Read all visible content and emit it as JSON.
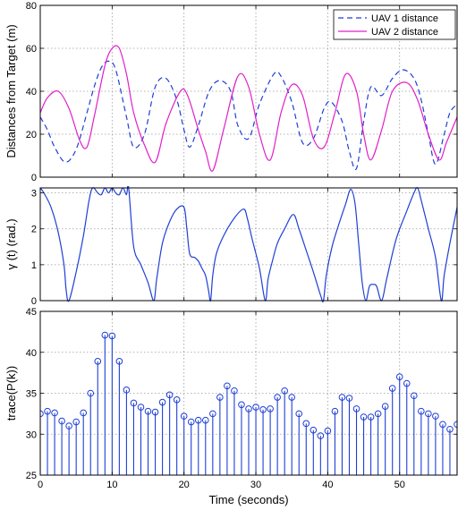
{
  "colors": {
    "blue": "#1f3fd6",
    "magenta": "#e020c8"
  },
  "x_axis": {
    "label": "Time (seconds)",
    "range": [
      0,
      58
    ],
    "ticks": [
      0,
      10,
      20,
      30,
      40,
      50
    ],
    "tick_labels": [
      "0",
      "10",
      "20",
      "30",
      "40",
      "50"
    ]
  },
  "chart_data": [
    {
      "type": "line",
      "ylabel": "Distances from Target (m)",
      "ylim": [
        0,
        80
      ],
      "yticks": [
        0,
        20,
        40,
        60,
        80
      ],
      "ytick_labels": [
        "0",
        "20",
        "40",
        "60",
        "80"
      ],
      "grid": true,
      "legend_position": "top-right",
      "series": [
        {
          "name": "UAV 1 distance",
          "style": "dashed",
          "color": "#1f3fd6",
          "x": [
            0,
            1,
            2,
            3.5,
            5,
            6.5,
            7.5,
            8.5,
            9.5,
            10.5,
            12,
            13,
            14.5,
            16,
            17.5,
            19,
            20,
            20.8,
            22,
            23.5,
            25,
            26.5,
            27.5,
            29,
            30.5,
            32.5,
            33.5,
            35,
            36.5,
            38,
            39.5,
            40.5,
            42,
            43,
            44,
            45,
            46,
            47.5,
            49,
            50.5,
            52,
            53,
            54,
            55,
            56.2,
            57,
            58
          ],
          "y": [
            28,
            22,
            14,
            7,
            13,
            30,
            42,
            51,
            54,
            50,
            28,
            14,
            20,
            42,
            46,
            36,
            22,
            14,
            24,
            40,
            45,
            40,
            24,
            18,
            34,
            48,
            47,
            35,
            16,
            18,
            32,
            35,
            26,
            12,
            4,
            26,
            42,
            38,
            46,
            50,
            46,
            36,
            20,
            6,
            20,
            30,
            34
          ]
        },
        {
          "name": "UAV 2 distance",
          "style": "solid",
          "color": "#e020c8",
          "x": [
            0,
            1,
            2.5,
            4,
            5.5,
            6.5,
            7.5,
            9,
            10,
            11,
            12,
            13,
            14.5,
            16,
            17.5,
            19.5,
            20.5,
            22,
            23,
            24,
            25.5,
            27.5,
            29,
            30.5,
            32,
            33.5,
            35,
            36.5,
            38,
            39.5,
            41,
            42.5,
            44,
            45,
            46,
            47.5,
            49,
            51,
            52.5,
            54,
            55.5,
            56.5,
            57.5,
            58
          ],
          "y": [
            30,
            37,
            40,
            32,
            17,
            14,
            28,
            52,
            60,
            60,
            48,
            30,
            15,
            7,
            25,
            40,
            38,
            22,
            12,
            3,
            22,
            47,
            42,
            20,
            8,
            30,
            43,
            38,
            18,
            14,
            30,
            48,
            40,
            20,
            8,
            22,
            40,
            44,
            36,
            20,
            8,
            16,
            24,
            28
          ]
        }
      ]
    },
    {
      "type": "line",
      "ylabel": "γ (t)  (rad.)",
      "ylim": [
        0,
        3.14
      ],
      "yticks": [
        0,
        1,
        2,
        3
      ],
      "ytick_labels": [
        "0",
        "1",
        "2",
        "3"
      ],
      "grid": true,
      "series": [
        {
          "style": "solid",
          "color": "#1f3fd6",
          "x": [
            0,
            0.5,
            1.5,
            2.5,
            3.3,
            3.6,
            4,
            5,
            6,
            6.8,
            7.3,
            8,
            8.5,
            9,
            9.5,
            10,
            10.5,
            11,
            11.5,
            12,
            12.3,
            13,
            14,
            15,
            15.8,
            16.2,
            17,
            18,
            19,
            20,
            20.4,
            20.8,
            21.5,
            22,
            22.5,
            23,
            23.4,
            23.7,
            24,
            24.5,
            25.5,
            27,
            28.3,
            28.8,
            29.5,
            30.5,
            31.3,
            31.7,
            32.3,
            33,
            34,
            35.2,
            36,
            37,
            38,
            39,
            39.4,
            39.8,
            40.6,
            41.5,
            42.5,
            43.2,
            43.8,
            44.3,
            44.8,
            45.3,
            45.8,
            46.3,
            46.8,
            47.5,
            48.2,
            49.5,
            51,
            52,
            52.5,
            53,
            54,
            55,
            55.8,
            56.2,
            57,
            58
          ],
          "y": [
            3.14,
            3.0,
            2.6,
            1.9,
            1.0,
            0.3,
            0.0,
            0.8,
            1.8,
            2.8,
            3.14,
            3.0,
            2.95,
            3.14,
            3.0,
            3.14,
            3.0,
            2.95,
            3.14,
            2.95,
            3.14,
            1.5,
            1.0,
            0.5,
            0.0,
            0.6,
            1.6,
            2.2,
            2.55,
            2.6,
            2.0,
            1.3,
            1.2,
            1.1,
            0.9,
            0.7,
            0.3,
            0.0,
            0.7,
            1.3,
            1.8,
            2.3,
            2.55,
            2.3,
            1.7,
            0.9,
            0.0,
            0.6,
            1.1,
            1.6,
            2.0,
            2.4,
            2.0,
            1.4,
            0.8,
            0.15,
            0.0,
            0.7,
            1.5,
            2.1,
            2.7,
            3.1,
            2.7,
            1.6,
            0.5,
            0.0,
            0.4,
            0.45,
            0.4,
            0.0,
            0.6,
            1.7,
            2.5,
            3.0,
            3.14,
            2.8,
            2.0,
            1.2,
            0.0,
            0.7,
            1.6,
            2.6
          ]
        }
      ]
    },
    {
      "type": "stem",
      "ylabel": "trace(P(k))",
      "ylim": [
        25,
        45
      ],
      "yticks": [
        25,
        30,
        35,
        40,
        45
      ],
      "ytick_labels": [
        "25",
        "30",
        "35",
        "40",
        "45"
      ],
      "grid": true,
      "series": [
        {
          "color": "#1f3fd6",
          "x": [
            0,
            1,
            2,
            3,
            4,
            5,
            6,
            7,
            8,
            9,
            10,
            11,
            12,
            13,
            14,
            15,
            16,
            17,
            18,
            19,
            20,
            21,
            22,
            23,
            24,
            25,
            26,
            27,
            28,
            29,
            30,
            31,
            32,
            33,
            34,
            35,
            36,
            37,
            38,
            39,
            40,
            41,
            42,
            43,
            44,
            45,
            46,
            47,
            48,
            49,
            50,
            51,
            52,
            53,
            54,
            55,
            56,
            57,
            58
          ],
          "y": [
            32.5,
            32.8,
            32.6,
            31.6,
            31.0,
            31.5,
            32.6,
            35.0,
            38.9,
            42.1,
            42.0,
            38.9,
            35.4,
            33.8,
            33.3,
            32.8,
            32.7,
            33.9,
            34.8,
            34.2,
            32.2,
            31.5,
            31.7,
            31.7,
            32.5,
            34.5,
            35.9,
            35.3,
            33.6,
            33.1,
            33.3,
            33.0,
            33.1,
            34.5,
            35.3,
            34.5,
            32.5,
            31.3,
            30.5,
            29.8,
            30.4,
            32.8,
            34.5,
            34.4,
            33.1,
            32.1,
            32.1,
            32.5,
            33.4,
            35.6,
            37.0,
            36.2,
            34.7,
            32.8,
            32.5,
            32.2,
            31.2,
            30.6,
            31.2
          ]
        }
      ]
    }
  ]
}
